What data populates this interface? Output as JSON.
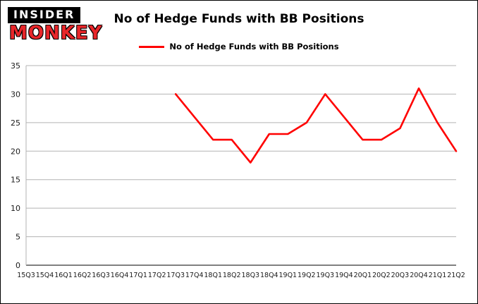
{
  "logo": {
    "line1": "INSIDER",
    "line2": "MONKEY"
  },
  "header": {
    "title": "No of Hedge Funds with BB Positions"
  },
  "legend": {
    "label": "No of Hedge Funds with BB Positions",
    "color": "#ff0000"
  },
  "chart_data": {
    "type": "line",
    "title": "No of Hedge Funds with BB Positions",
    "categories": [
      "15Q3",
      "15Q4",
      "16Q1",
      "16Q2",
      "16Q3",
      "16Q4",
      "17Q1",
      "17Q2",
      "17Q3",
      "17Q4",
      "18Q1",
      "18Q2",
      "18Q3",
      "18Q4",
      "19Q1",
      "19Q2",
      "19Q3",
      "19Q4",
      "20Q1",
      "20Q2",
      "20Q3",
      "20Q4",
      "21Q1",
      "21Q2"
    ],
    "series": [
      {
        "name": "No of Hedge Funds with BB Positions",
        "color": "#ff0000",
        "values": [
          null,
          null,
          null,
          null,
          null,
          null,
          null,
          null,
          30,
          26,
          22,
          22,
          18,
          23,
          23,
          25,
          30,
          26,
          22,
          22,
          24,
          31,
          25,
          20
        ]
      }
    ],
    "xlabel": "",
    "ylabel": "",
    "ylim": [
      0,
      35
    ],
    "yticks": [
      0,
      5,
      10,
      15,
      20,
      25,
      30,
      35
    ],
    "grid": true,
    "legend_position": "top",
    "grid_color": "#b3b3b3",
    "baseline_color": "#000000",
    "tick_label_color": "#1a1a1a"
  }
}
